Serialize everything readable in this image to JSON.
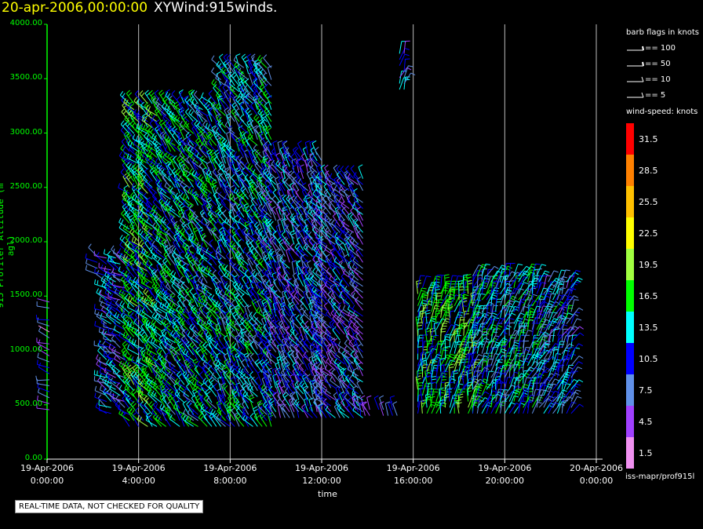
{
  "header": {
    "datetime": "20-apr-2006,00:00:00",
    "name": "XYWind:915winds."
  },
  "chart_data": {
    "type": "scatter",
    "title": "XYWind:915winds.",
    "xlabel": "time",
    "ylabel": "915 Profiler Altitude (m agl)",
    "xlim_hours": [
      0,
      24
    ],
    "ylim": [
      0,
      4000
    ],
    "yticks": [
      "0.00",
      "500.00",
      "1000.00",
      "1500.00",
      "2000.00",
      "2500.00",
      "3000.00",
      "3500.00",
      "4000.00"
    ],
    "xticks": [
      {
        "h": 0,
        "date": "19-Apr-2006",
        "time": "0:00:00"
      },
      {
        "h": 4,
        "date": "19-Apr-2006",
        "time": "4:00:00"
      },
      {
        "h": 8,
        "date": "19-Apr-2006",
        "time": "8:00:00"
      },
      {
        "h": 12,
        "date": "19-Apr-2006",
        "time": "12:00:00"
      },
      {
        "h": 16,
        "date": "19-Apr-2006",
        "time": "16:00:00"
      },
      {
        "h": 20,
        "date": "19-Apr-2006",
        "time": "20:00:00"
      },
      {
        "h": 24,
        "date": "20-Apr-2006",
        "time": "0:00:00"
      }
    ],
    "grid": "vertical lines at each time tick",
    "segments": [
      {
        "h0": 0.1,
        "h1": 0.3,
        "a0": 400,
        "a1": 1450,
        "dir": 285,
        "spd": 8
      },
      {
        "h0": 2.2,
        "h1": 2.4,
        "a0": 1700,
        "a1": 1900,
        "dir": 300,
        "spd": 9
      },
      {
        "h0": 2.6,
        "h1": 3.5,
        "a0": 420,
        "a1": 1900,
        "dir": 300,
        "spd": 11
      },
      {
        "h0": 3.6,
        "h1": 5.0,
        "a0": 300,
        "a1": 3300,
        "dir": 315,
        "spd": 16
      },
      {
        "h0": 5.0,
        "h1": 7.6,
        "a0": 300,
        "a1": 3300,
        "dir": 320,
        "spd": 14
      },
      {
        "h0": 7.6,
        "h1": 9.8,
        "a0": 300,
        "a1": 3600,
        "dir": 325,
        "spd": 13
      },
      {
        "h0": 9.8,
        "h1": 12.0,
        "a0": 380,
        "a1": 2800,
        "dir": 330,
        "spd": 11
      },
      {
        "h0": 12.0,
        "h1": 13.8,
        "a0": 380,
        "a1": 2600,
        "dir": 320,
        "spd": 10
      },
      {
        "h0": 13.5,
        "h1": 15.4,
        "a0": 400,
        "a1": 500,
        "dir": 340,
        "spd": 8
      },
      {
        "h0": 15.4,
        "h1": 15.6,
        "a0": 3400,
        "a1": 3750,
        "dir": 20,
        "spd": 11
      },
      {
        "h0": 16.2,
        "h1": 18.6,
        "a0": 420,
        "a1": 1600,
        "dir": 10,
        "spd": 16
      },
      {
        "h0": 18.6,
        "h1": 21.5,
        "a0": 420,
        "a1": 1700,
        "dir": 20,
        "spd": 13
      },
      {
        "h0": 21.5,
        "h1": 23.0,
        "a0": 420,
        "a1": 1650,
        "dir": 25,
        "spd": 12
      }
    ]
  },
  "legend": {
    "flags_title": "barb flags in knots",
    "flags": [
      "== 100",
      "== 50",
      "== 10",
      "== 5"
    ],
    "speed_title": "wind-speed: knots",
    "bins": [
      {
        "label": "31.5",
        "color": "#ff0000"
      },
      {
        "label": "28.5",
        "color": "#ff8000"
      },
      {
        "label": "25.5",
        "color": "#ffc000"
      },
      {
        "label": "22.5",
        "color": "#ffff00"
      },
      {
        "label": "19.5",
        "color": "#a0ff40"
      },
      {
        "label": "16.5",
        "color": "#00ff00"
      },
      {
        "label": "13.5",
        "color": "#00ffff"
      },
      {
        "label": "10.5",
        "color": "#0000ff"
      },
      {
        "label": "7.5",
        "color": "#6090e8"
      },
      {
        "label": "4.5",
        "color": "#a040ff"
      },
      {
        "label": "1.5",
        "color": "#f090f0"
      }
    ]
  },
  "source_id": "iss-mapr/prof915l",
  "quality_note": "REAL-TIME DATA, NOT CHECKED FOR QUALITY"
}
